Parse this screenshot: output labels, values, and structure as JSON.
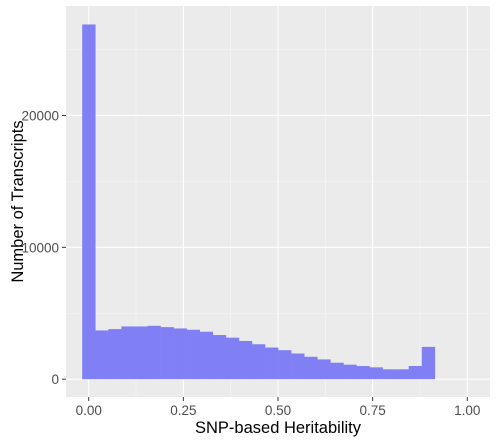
{
  "chart_data": {
    "type": "bar",
    "title": "",
    "xlabel": "SNP-based Heritability",
    "ylabel": "Number of Transcripts",
    "x_ticks": [
      "0.00",
      "0.25",
      "0.50",
      "0.75",
      "1.00"
    ],
    "x_tick_values": [
      0,
      0.25,
      0.5,
      0.75,
      1.0
    ],
    "y_ticks": [
      "0",
      "10000",
      "20000"
    ],
    "y_tick_values": [
      0,
      10000,
      20000
    ],
    "xlim": [
      -0.06,
      1.06
    ],
    "ylim": [
      -1350,
      28300
    ],
    "grid": true,
    "bin_width": 0.0345,
    "bin_start": -0.01725,
    "values": [
      26900,
      3700,
      3800,
      4000,
      4000,
      4050,
      3950,
      3850,
      3750,
      3600,
      3350,
      3150,
      2900,
      2650,
      2400,
      2200,
      1950,
      1700,
      1500,
      1250,
      1100,
      1000,
      900,
      750,
      750,
      1000,
      2450
    ],
    "colors": {
      "panel": "#ebebeb",
      "grid_major": "#ffffff",
      "grid_minor": "#f5f5f5",
      "bar": "#8080f4",
      "tick": "#333333"
    }
  }
}
